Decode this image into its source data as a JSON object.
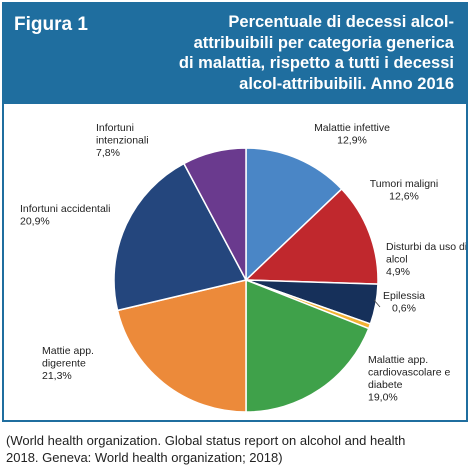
{
  "figure_label": "Figura 1",
  "title_lines": [
    "Percentuale di decessi alcol-",
    "attribuibili per categoria generica",
    "di malattia, rispetto a tutti i decessi",
    "alcol-attribuibili. Anno 2016"
  ],
  "source_lines": [
    "(World health organization. Global status report on alcohol and health",
    "2018. Geneva: World health organization; 2018)"
  ],
  "colors": {
    "frame": "#1f6e9f",
    "header_bg": "#1f6e9f",
    "header_text": "#ffffff"
  },
  "chart_data": {
    "type": "pie",
    "start": "12 o'clock, clockwise",
    "slices": [
      {
        "label_lines": [
          "Malattie infettive",
          "12,9%"
        ],
        "value": 12.9,
        "color": "#4a86c6"
      },
      {
        "label_lines": [
          "Tumori maligni",
          "12,6%"
        ],
        "value": 12.6,
        "color": "#c0282d"
      },
      {
        "label_lines": [
          "Disturbi da uso di",
          "alcol",
          "4,9%"
        ],
        "value": 4.9,
        "color": "#16305a"
      },
      {
        "label_lines": [
          "Epilessia",
          "0,6%"
        ],
        "value": 0.6,
        "color": "#f2b233"
      },
      {
        "label_lines": [
          "Malattie app.",
          "cardiovascolare e",
          "diabete",
          "19,0%"
        ],
        "value": 19.0,
        "color": "#3fa14a"
      },
      {
        "label_lines": [
          "Mattie app.",
          "digerente",
          "21,3%"
        ],
        "value": 21.3,
        "color": "#ec8a3a"
      },
      {
        "label_lines": [
          "Infortuni accidentali",
          "20,9%"
        ],
        "value": 20.9,
        "color": "#24467d"
      },
      {
        "label_lines": [
          "Infortuni",
          "intenzionali",
          "7,8%"
        ],
        "value": 7.8,
        "color": "#6a3a8e"
      }
    ]
  }
}
